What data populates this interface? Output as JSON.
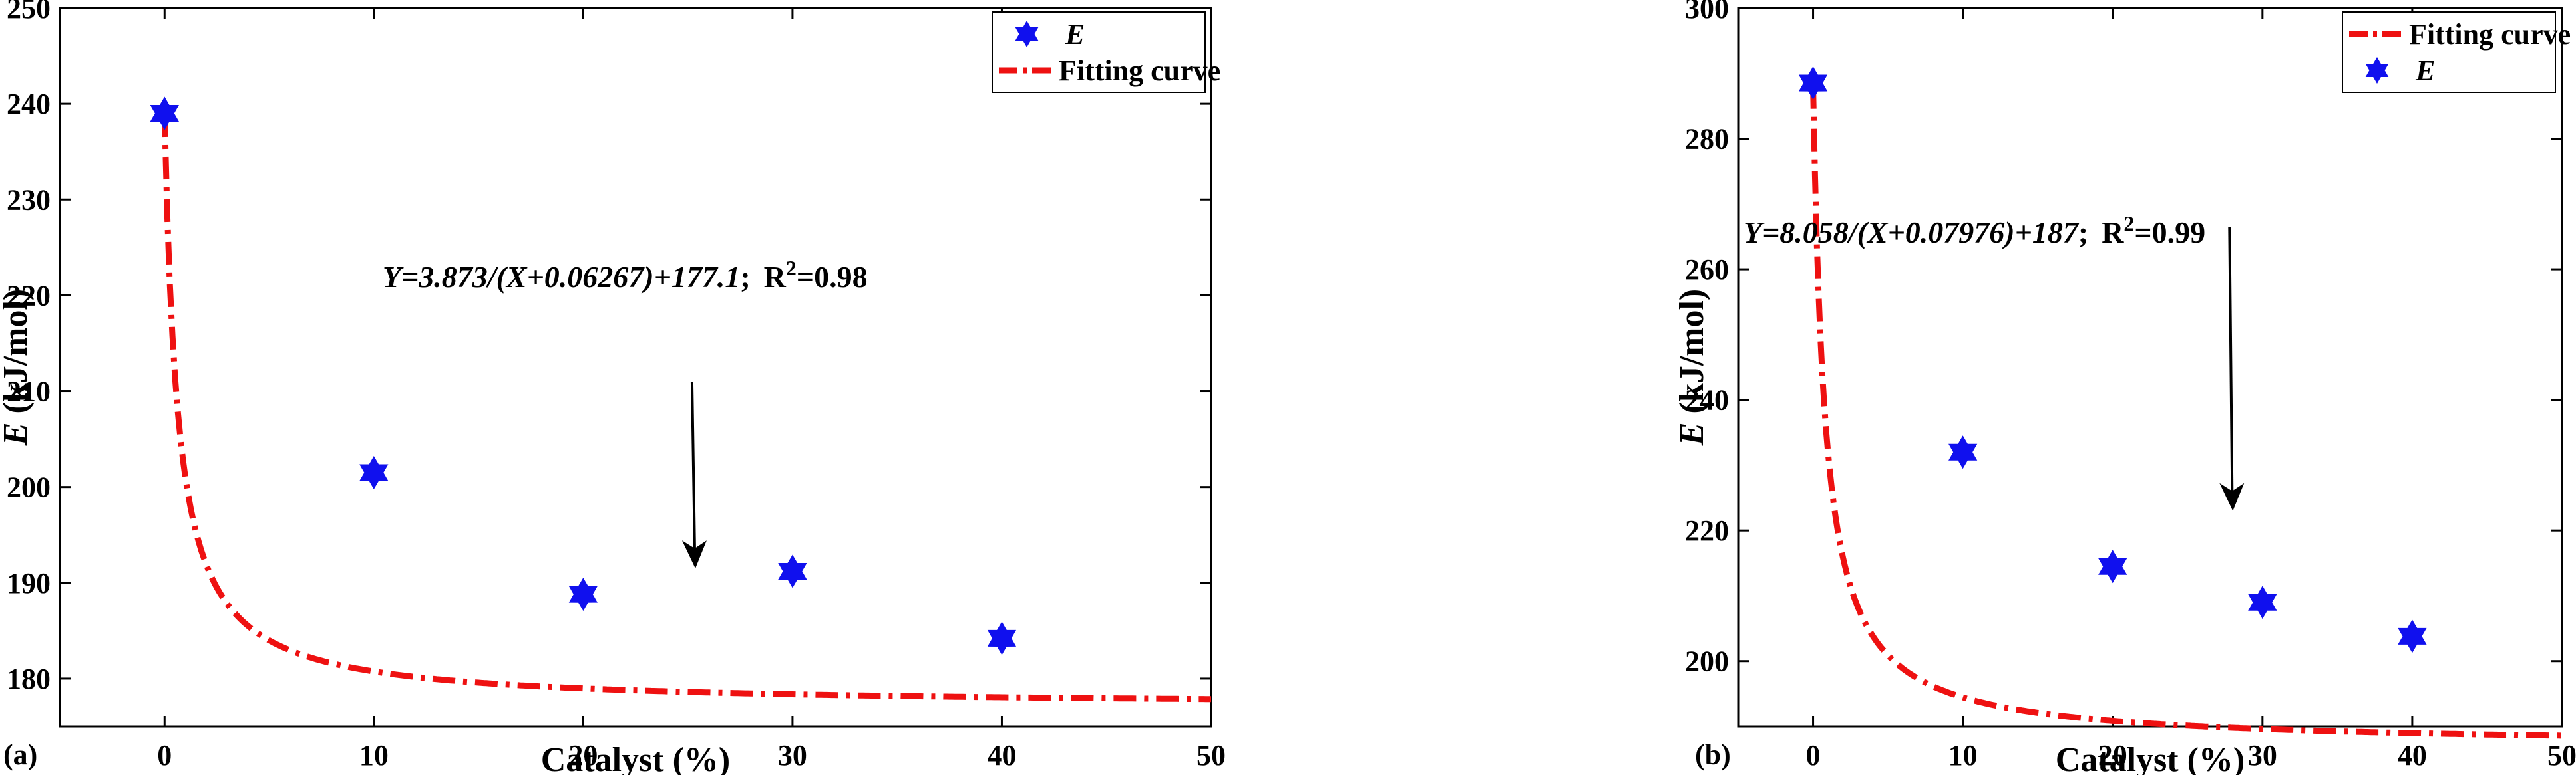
{
  "chart_data": [
    {
      "type": "scatter",
      "panel_label": "(a)",
      "xlabel": "Catalyst (%)",
      "ylabel_var": "E",
      "ylabel_unit": " (kJ/mol)",
      "xlim": [
        -5,
        50
      ],
      "ylim": [
        175,
        250
      ],
      "xticks": [
        0,
        10,
        20,
        30,
        40,
        50
      ],
      "yticks": [
        180,
        190,
        200,
        210,
        220,
        230,
        240,
        250
      ],
      "points": {
        "name": "E",
        "x": [
          0,
          10,
          20,
          30,
          40
        ],
        "y": [
          239,
          201.5,
          188.8,
          191.2,
          184.2
        ]
      },
      "fit": {
        "name": "Fitting curve",
        "a": 3.873,
        "b": 0.06267,
        "c": 177.1
      },
      "legend_order": [
        "points",
        "fit"
      ],
      "legend_position": "top-right",
      "annotation": {
        "equation": "Y=3.873/(X+0.06267)+177.1",
        "sep": ";",
        "r2_prefix": "R",
        "r2_sup": "2",
        "r2_value": "=0.98"
      },
      "arrow": {
        "x": 25.2,
        "y_start": 211,
        "y_end": 191.5
      },
      "colors": {
        "points": "#1010ee",
        "fit": "#ee1111",
        "axis": "#000000"
      }
    },
    {
      "type": "scatter",
      "panel_label": "(b)",
      "xlabel": "Catalyst (%)",
      "ylabel_var": "E",
      "ylabel_unit": " (kJ/mol)",
      "xlim": [
        -5,
        50
      ],
      "ylim": [
        190,
        300
      ],
      "xticks": [
        0,
        10,
        20,
        30,
        40,
        50
      ],
      "yticks": [
        200,
        220,
        240,
        260,
        280,
        300
      ],
      "points": {
        "name": "E",
        "x": [
          0,
          10,
          20,
          30,
          40
        ],
        "y": [
          288.5,
          232,
          214.5,
          209,
          203.8
        ]
      },
      "fit": {
        "name": "Fitting curve",
        "a": 8.058,
        "b": 0.07976,
        "c": 187
      },
      "legend_order": [
        "fit",
        "points"
      ],
      "legend_position": "top-right",
      "annotation": {
        "equation": "Y=8.058/(X+0.07976)+187",
        "sep": ";",
        "r2_prefix": "R",
        "r2_sup": "2",
        "r2_value": "=0.99"
      },
      "arrow": {
        "x": 27.8,
        "y_start": 266.5,
        "y_end": 223
      },
      "colors": {
        "points": "#1010ee",
        "fit": "#ee1111",
        "axis": "#000000"
      }
    }
  ]
}
